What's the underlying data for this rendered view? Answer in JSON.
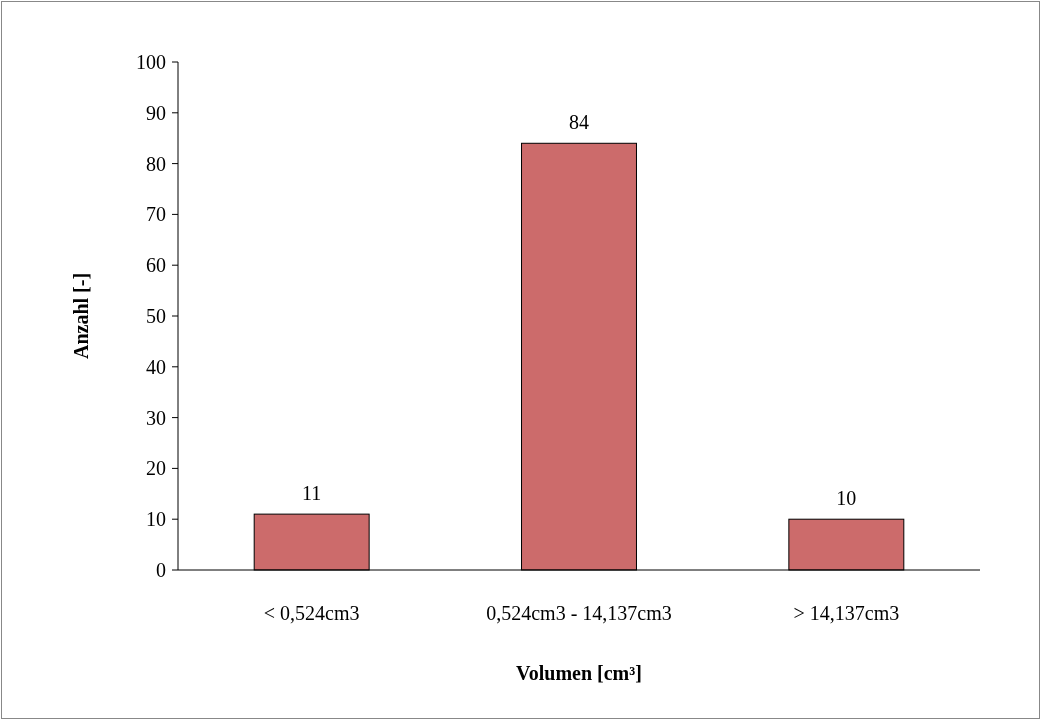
{
  "chart_data": {
    "type": "bar",
    "xlabel": "Volumen [cm³]",
    "ylabel": "Anzahl [-]",
    "categories": [
      "< 0,524cm3",
      "0,524cm3 - 14,137cm3",
      "> 14,137cm3"
    ],
    "values": [
      11,
      84,
      10
    ],
    "color": "#cc6b6b",
    "ylim": [
      0,
      100
    ],
    "yticks": [
      0,
      10,
      20,
      30,
      40,
      50,
      60,
      70,
      80,
      90,
      100
    ],
    "data_labels": true,
    "grid": false
  }
}
